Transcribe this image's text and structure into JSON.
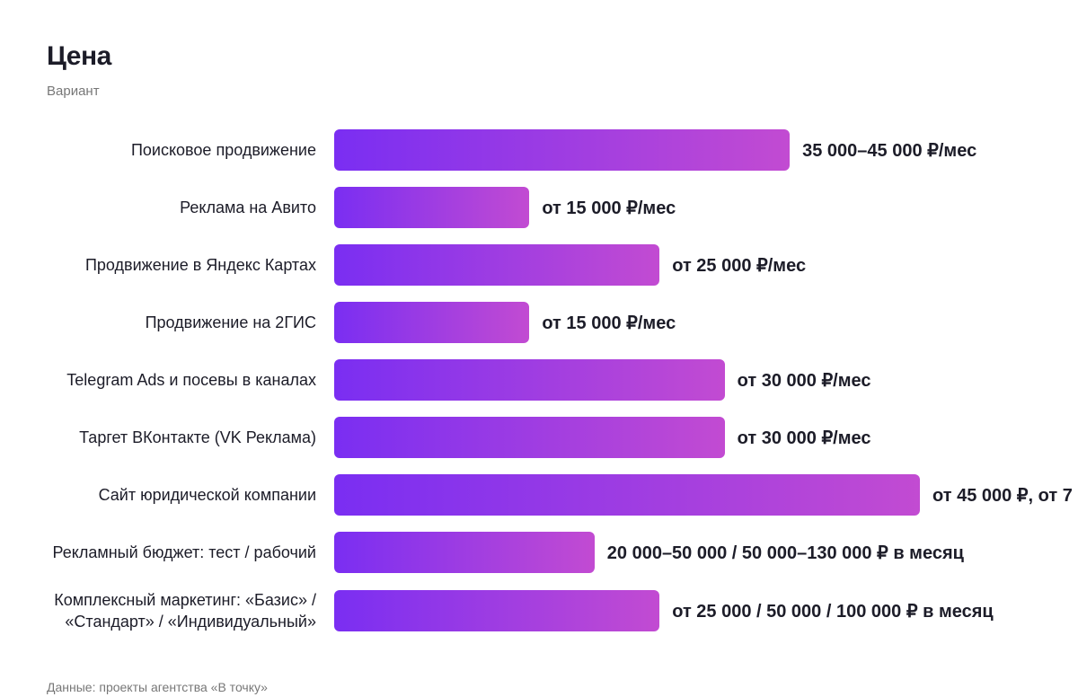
{
  "chart_data": {
    "type": "bar",
    "orientation": "horizontal",
    "title": "Цена",
    "subtitle": "Вариант",
    "categories": [
      "Поисковое продвижение",
      "Реклама на Авито",
      "Продвижение в Яндекс Картах",
      "Продвижение на 2ГИС",
      "Telegram Ads и посевы в каналах",
      "Таргет ВКонтакте (VK Реклама)",
      "Сайт юридической компании",
      "Рекламный бюджет: тест / рабочий",
      "Комплексный маркетинг: «Базис» / «Стандарт» / «Индивидуальный»"
    ],
    "values": [
      35000,
      15000,
      25000,
      15000,
      30000,
      30000,
      45000,
      20000,
      25000
    ],
    "value_labels": [
      "35 000–45 000 ₽/мес",
      "от 15 000 ₽/мес",
      "от 25 000 ₽/мес",
      "от 15 000 ₽/мес",
      "от 30 000 ₽/мес",
      "от 30 000 ₽/мес",
      "от 45 000 ₽, от 7",
      "20 000–50 000 / 50 000–130 000 ₽ в месяц",
      "от 25 000 / 50 000 / 100 000 ₽ в месяц"
    ],
    "color_start": "#7a2ef2",
    "color_end": "#c24bd2",
    "source": "Данные: проекты агентства «В точку»"
  }
}
